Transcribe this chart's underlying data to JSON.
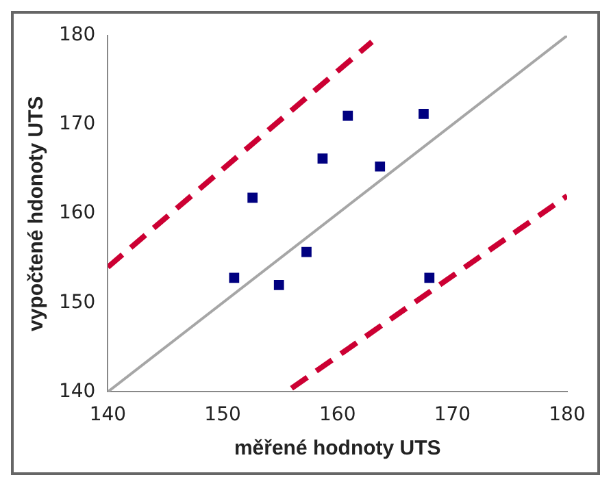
{
  "chart_data": {
    "type": "scatter",
    "xlabel": "měřené hodnoty UTS",
    "ylabel": "vypočtené hdonoty UTS",
    "xlim": [
      140,
      180
    ],
    "xticks": [
      140,
      150,
      160,
      170,
      180
    ],
    "ylim": [
      140,
      180
    ],
    "yticks": [
      140,
      150,
      160,
      170,
      180
    ],
    "grid": false,
    "legend": false,
    "series": [
      {
        "type": "line",
        "color": "#a6a6a6",
        "marker": "none",
        "line_style": "solid",
        "x": [
          140,
          180
        ],
        "values": [
          140,
          180
        ]
      },
      {
        "type": "line",
        "color": "#cc0033",
        "marker": "none",
        "line_style": "dashed",
        "x": [
          140,
          163
        ],
        "values": [
          154,
          179.3
        ]
      },
      {
        "type": "line",
        "color": "#cc0033",
        "marker": "none",
        "line_style": "dashed",
        "x": [
          156,
          180
        ],
        "values": [
          140.4,
          162
        ]
      },
      {
        "type": "scatter",
        "color": "#000080",
        "marker": "square",
        "x": [
          151,
          152.6,
          154.9,
          157.3,
          158.7,
          160.9,
          163.7,
          167.5,
          168
        ],
        "values": [
          152.8,
          161.8,
          152,
          155.7,
          166.2,
          171,
          165.3,
          171.2,
          152.8
        ]
      }
    ]
  }
}
